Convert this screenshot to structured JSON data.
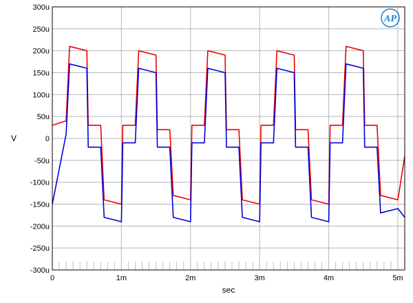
{
  "chart_data": {
    "type": "line",
    "title": "",
    "xlabel": "sec",
    "ylabel": "V",
    "xlim": [
      0,
      0.0051
    ],
    "ylim": [
      -0.0003,
      0.0003
    ],
    "grid": true,
    "legend": "none",
    "xticks": [
      {
        "value": 0,
        "label": "0"
      },
      {
        "value": 0.001,
        "label": "1m"
      },
      {
        "value": 0.002,
        "label": "2m"
      },
      {
        "value": 0.003,
        "label": "3m"
      },
      {
        "value": 0.004,
        "label": "4m"
      },
      {
        "value": 0.005,
        "label": "5m"
      }
    ],
    "yticks": [
      {
        "value": 0.0003,
        "label": "300u"
      },
      {
        "value": 0.00025,
        "label": "250u"
      },
      {
        "value": 0.0002,
        "label": "200u"
      },
      {
        "value": 0.00015,
        "label": "150u"
      },
      {
        "value": 0.0001,
        "label": "100u"
      },
      {
        "value": 5e-05,
        "label": "50u"
      },
      {
        "value": 0,
        "label": "0"
      },
      {
        "value": -5e-05,
        "label": "-50u"
      },
      {
        "value": -0.0001,
        "label": "-100u"
      },
      {
        "value": -0.00015,
        "label": "-150u"
      },
      {
        "value": -0.0002,
        "label": "-200u"
      },
      {
        "value": -0.00025,
        "label": "-250u"
      },
      {
        "value": -0.0003,
        "label": "-300u"
      }
    ],
    "series": [
      {
        "color": "#ee0000",
        "x": [
          0,
          0.0002,
          0.00025,
          0.0005,
          0.00052,
          0.0007,
          0.00075,
          0.001,
          0.00102,
          0.0012,
          0.00125,
          0.0015,
          0.00152,
          0.0017,
          0.00175,
          0.002,
          0.00202,
          0.0022,
          0.00225,
          0.0025,
          0.00252,
          0.0027,
          0.00275,
          0.003,
          0.00302,
          0.0032,
          0.00325,
          0.0035,
          0.00352,
          0.0037,
          0.00375,
          0.004,
          0.00402,
          0.0042,
          0.00425,
          0.0045,
          0.00452,
          0.0047,
          0.00475,
          0.005,
          0.0051
        ],
        "values": [
          3e-05,
          4e-05,
          0.00021,
          0.0002,
          3e-05,
          3e-05,
          -0.00014,
          -0.00015,
          3e-05,
          3e-05,
          0.0002,
          0.00019,
          2e-05,
          2e-05,
          -0.00013,
          -0.00014,
          3e-05,
          3e-05,
          0.0002,
          0.00019,
          2e-05,
          2e-05,
          -0.00014,
          -0.00015,
          3e-05,
          3e-05,
          0.0002,
          0.00019,
          2e-05,
          2e-05,
          -0.00014,
          -0.00015,
          3e-05,
          3e-05,
          0.00021,
          0.0002,
          3e-05,
          3e-05,
          -0.00013,
          -0.00014,
          -4e-05
        ]
      },
      {
        "color": "#0000dd",
        "x": [
          0,
          0.0002,
          0.00025,
          0.0005,
          0.00052,
          0.0007,
          0.00075,
          0.001,
          0.00102,
          0.0012,
          0.00125,
          0.0015,
          0.00152,
          0.0017,
          0.00175,
          0.002,
          0.00202,
          0.0022,
          0.00225,
          0.0025,
          0.00252,
          0.0027,
          0.00275,
          0.003,
          0.00302,
          0.0032,
          0.00325,
          0.0035,
          0.00352,
          0.0037,
          0.00375,
          0.004,
          0.00402,
          0.0042,
          0.00425,
          0.0045,
          0.00452,
          0.0047,
          0.00475,
          0.005,
          0.0051
        ],
        "values": [
          -0.00015,
          1e-05,
          0.00017,
          0.00016,
          -2e-05,
          -2e-05,
          -0.00018,
          -0.00019,
          -1e-05,
          -1e-05,
          0.00016,
          0.00015,
          -2e-05,
          -2e-05,
          -0.00018,
          -0.00019,
          -1e-05,
          -1e-05,
          0.00016,
          0.00015,
          -2e-05,
          -2e-05,
          -0.00018,
          -0.00019,
          -1e-05,
          -1e-05,
          0.00016,
          0.00015,
          -2e-05,
          -2e-05,
          -0.00018,
          -0.00019,
          -1e-05,
          -1e-05,
          0.00017,
          0.00016,
          -2e-05,
          -2e-05,
          -0.00017,
          -0.00016,
          -0.00018
        ]
      }
    ]
  },
  "logo": {
    "text": "AP"
  }
}
